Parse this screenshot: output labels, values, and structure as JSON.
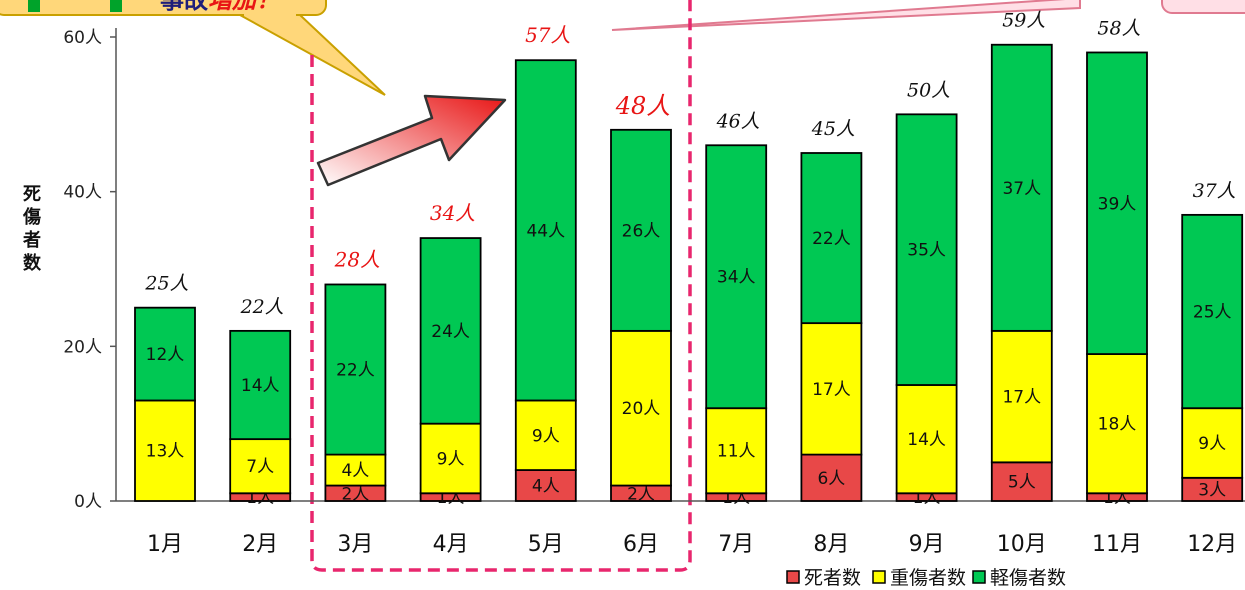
{
  "chart_data": {
    "type": "bar",
    "stacked": true,
    "categories": [
      "1月",
      "2月",
      "3月",
      "4月",
      "5月",
      "6月",
      "7月",
      "8月",
      "9月",
      "10月",
      "11月",
      "12月"
    ],
    "series": [
      {
        "name": "死者数",
        "values": [
          0,
          1,
          2,
          1,
          4,
          2,
          1,
          6,
          1,
          5,
          1,
          3
        ],
        "labels": [
          "",
          "1人",
          "2人",
          "1人",
          "4人",
          "2人",
          "1人",
          "6人",
          "1人",
          "5人",
          "1人",
          "3人"
        ],
        "color": "#e84848"
      },
      {
        "name": "重傷者数",
        "values": [
          13,
          7,
          4,
          9,
          9,
          20,
          11,
          17,
          14,
          17,
          18,
          9
        ],
        "labels": [
          "13人",
          "7人",
          "4人",
          "9人",
          "9人",
          "20人",
          "11人",
          "17人",
          "14人",
          "17人",
          "18人",
          "9人"
        ],
        "color": "#ffff00"
      },
      {
        "name": "軽傷者数",
        "values": [
          12,
          14,
          22,
          24,
          44,
          26,
          34,
          22,
          35,
          37,
          39,
          25
        ],
        "labels": [
          "12人",
          "14人",
          "22人",
          "24人",
          "44人",
          "26人",
          "34人",
          "22人",
          "35人",
          "37人",
          "39人",
          "25人"
        ],
        "color": "#00c853"
      }
    ],
    "totals": [
      25,
      22,
      28,
      34,
      57,
      48,
      46,
      45,
      50,
      59,
      58,
      37
    ],
    "total_labels": [
      "25人",
      "22人",
      "28人",
      "34人",
      "57人",
      "48人",
      "46人",
      "45人",
      "50人",
      "59人",
      "58人",
      "37人"
    ],
    "highlighted_months": [
      "3月",
      "4月",
      "5月",
      "6月"
    ],
    "ylabel": "死傷者数",
    "ylim": [
      0,
      60
    ],
    "yticks": [
      0,
      20,
      40,
      60
    ],
    "ytick_labels": [
      "0人",
      "20人",
      "40人",
      "60人"
    ],
    "grid": false,
    "legend_position": "bottom-right"
  },
  "callout": {
    "text_black": "事故",
    "text_red": "増加！"
  },
  "colors": {
    "highlight": "#e81515",
    "dashed_box": "#e8266d",
    "callout_fill": "#ffd77a",
    "callout_border": "#c9a000"
  }
}
